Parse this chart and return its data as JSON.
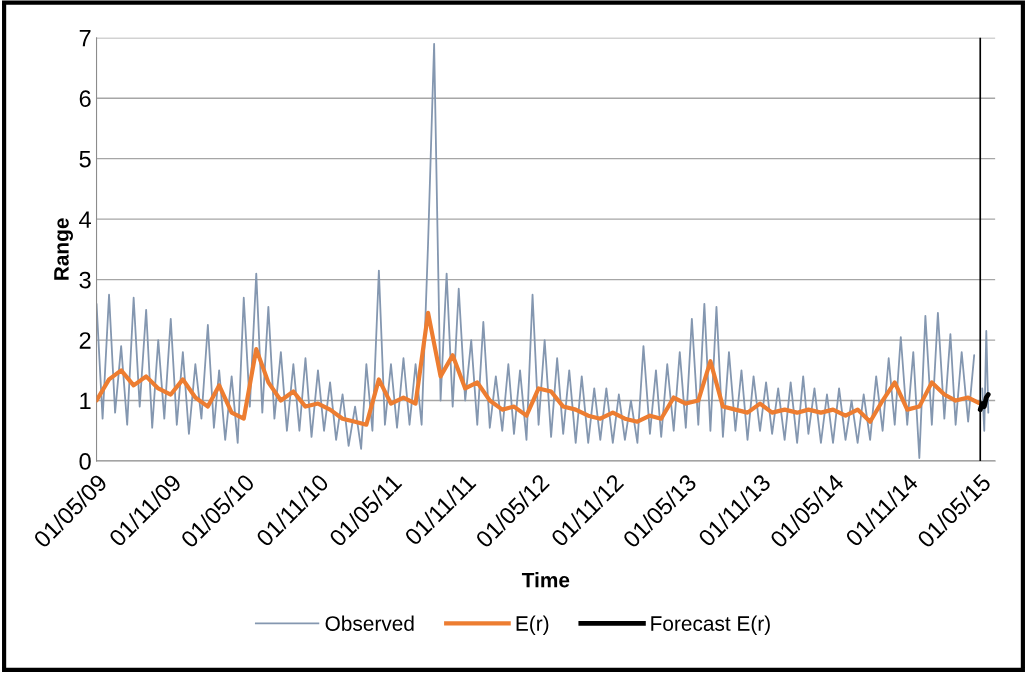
{
  "chart_data": {
    "type": "line",
    "xlabel": "Time",
    "ylabel": "Range",
    "ylim": [
      0,
      7
    ],
    "yticks": [
      0,
      1,
      2,
      3,
      4,
      5,
      6,
      7
    ],
    "xlim": [
      "2009-05-01",
      "2015-06-07"
    ],
    "xticks": [
      {
        "value": "2009-05-01",
        "label": "01/05/09"
      },
      {
        "value": "2009-11-01",
        "label": "01/11/09"
      },
      {
        "value": "2010-05-01",
        "label": "01/05/10"
      },
      {
        "value": "2010-11-01",
        "label": "01/11/10"
      },
      {
        "value": "2011-05-01",
        "label": "01/05/11"
      },
      {
        "value": "2011-11-01",
        "label": "01/11/11"
      },
      {
        "value": "2012-05-01",
        "label": "01/05/12"
      },
      {
        "value": "2012-11-01",
        "label": "01/11/12"
      },
      {
        "value": "2013-05-01",
        "label": "01/05/13"
      },
      {
        "value": "2013-11-01",
        "label": "01/11/13"
      },
      {
        "value": "2014-05-01",
        "label": "01/05/14"
      },
      {
        "value": "2014-11-01",
        "label": "01/11/14"
      },
      {
        "value": "2015-05-01",
        "label": "01/05/15"
      }
    ],
    "grid": "y",
    "legend": "bottom",
    "marker": "none",
    "line_style": "solid",
    "ref_lines": [
      {
        "axis": "x",
        "value": "2015-05-01",
        "color": "#000000"
      }
    ],
    "series": [
      {
        "name": "Observed",
        "color": "#8497b0",
        "x": [
          "2009-05-01",
          "2009-05-16",
          "2009-06-01",
          "2009-06-16",
          "2009-07-01",
          "2009-07-16",
          "2009-08-01",
          "2009-08-16",
          "2009-09-01",
          "2009-09-16",
          "2009-10-01",
          "2009-10-16",
          "2009-11-01",
          "2009-11-16",
          "2009-12-01",
          "2009-12-16",
          "2010-01-01",
          "2010-01-16",
          "2010-02-01",
          "2010-02-16",
          "2010-03-01",
          "2010-03-16",
          "2010-04-01",
          "2010-04-16",
          "2010-05-01",
          "2010-05-16",
          "2010-06-01",
          "2010-06-16",
          "2010-07-01",
          "2010-07-16",
          "2010-08-01",
          "2010-08-16",
          "2010-09-01",
          "2010-09-16",
          "2010-10-01",
          "2010-10-16",
          "2010-11-01",
          "2010-11-16",
          "2010-12-01",
          "2010-12-16",
          "2011-01-01",
          "2011-01-16",
          "2011-02-01",
          "2011-02-16",
          "2011-03-01",
          "2011-03-16",
          "2011-04-01",
          "2011-04-16",
          "2011-05-01",
          "2011-05-16",
          "2011-06-01",
          "2011-06-16",
          "2011-07-01",
          "2011-07-16",
          "2011-08-01",
          "2011-08-16",
          "2011-09-01",
          "2011-09-16",
          "2011-10-01",
          "2011-10-16",
          "2011-11-01",
          "2011-11-16",
          "2011-12-01",
          "2011-12-16",
          "2012-01-01",
          "2012-01-16",
          "2012-02-01",
          "2012-02-16",
          "2012-03-01",
          "2012-03-16",
          "2012-04-01",
          "2012-04-16",
          "2012-05-01",
          "2012-05-16",
          "2012-06-01",
          "2012-06-16",
          "2012-07-01",
          "2012-07-16",
          "2012-08-01",
          "2012-08-16",
          "2012-09-01",
          "2012-09-16",
          "2012-10-01",
          "2012-10-16",
          "2012-11-01",
          "2012-11-16",
          "2012-12-01",
          "2012-12-16",
          "2013-01-01",
          "2013-01-16",
          "2013-02-01",
          "2013-02-16",
          "2013-03-01",
          "2013-03-16",
          "2013-04-01",
          "2013-04-16",
          "2013-05-01",
          "2013-05-16",
          "2013-06-01",
          "2013-06-16",
          "2013-07-01",
          "2013-07-16",
          "2013-08-01",
          "2013-08-16",
          "2013-09-01",
          "2013-09-16",
          "2013-10-01",
          "2013-10-16",
          "2013-11-01",
          "2013-11-16",
          "2013-12-01",
          "2013-12-16",
          "2014-01-01",
          "2014-01-16",
          "2014-02-01",
          "2014-02-16",
          "2014-03-01",
          "2014-03-16",
          "2014-04-01",
          "2014-04-16",
          "2014-05-01",
          "2014-05-16",
          "2014-06-01",
          "2014-06-16",
          "2014-07-01",
          "2014-07-16",
          "2014-08-01",
          "2014-08-16",
          "2014-09-01",
          "2014-09-16",
          "2014-10-01",
          "2014-10-16",
          "2014-11-01",
          "2014-11-16",
          "2014-12-01",
          "2014-12-16",
          "2015-01-01",
          "2015-01-16",
          "2015-02-01",
          "2015-02-16",
          "2015-03-01",
          "2015-03-16",
          "2015-04-01",
          "2015-04-16",
          "2015-05-01",
          "2015-05-06",
          "2015-05-11",
          "2015-05-16",
          "2015-05-21"
        ],
        "values": [
          2.6,
          0.7,
          2.75,
          0.8,
          1.9,
          0.6,
          2.7,
          0.9,
          2.5,
          0.55,
          2.0,
          0.7,
          2.35,
          0.6,
          1.8,
          0.45,
          1.6,
          0.7,
          2.25,
          0.55,
          1.5,
          0.35,
          1.4,
          0.3,
          2.7,
          0.9,
          3.1,
          0.8,
          2.55,
          0.7,
          1.8,
          0.5,
          1.6,
          0.5,
          1.7,
          0.4,
          1.5,
          0.5,
          1.3,
          0.35,
          1.1,
          0.25,
          0.9,
          0.2,
          1.6,
          0.5,
          3.15,
          0.6,
          1.6,
          0.55,
          1.7,
          0.6,
          1.6,
          0.6,
          3.6,
          6.9,
          1.0,
          3.1,
          0.9,
          2.85,
          1.0,
          2.0,
          0.6,
          2.3,
          0.55,
          1.4,
          0.5,
          1.6,
          0.45,
          1.5,
          0.35,
          2.75,
          0.6,
          2.0,
          0.4,
          1.7,
          0.45,
          1.5,
          0.3,
          1.4,
          0.3,
          1.2,
          0.35,
          1.2,
          0.3,
          1.1,
          0.35,
          1.0,
          0.3,
          1.9,
          0.45,
          1.5,
          0.4,
          1.6,
          0.5,
          1.8,
          0.55,
          2.35,
          0.6,
          2.6,
          0.5,
          2.55,
          0.4,
          1.8,
          0.5,
          1.5,
          0.35,
          1.4,
          0.5,
          1.3,
          0.45,
          1.2,
          0.35,
          1.3,
          0.3,
          1.4,
          0.45,
          1.2,
          0.3,
          1.1,
          0.3,
          1.2,
          0.35,
          1.0,
          0.3,
          1.1,
          0.35,
          1.4,
          0.5,
          1.7,
          0.6,
          2.05,
          0.6,
          1.8,
          0.05,
          2.4,
          0.6,
          2.45,
          0.7,
          2.1,
          0.6,
          1.8,
          0.65,
          1.75,
          null,
          1.2,
          0.5,
          2.15,
          0.8
        ]
      },
      {
        "name": "E(r)",
        "color": "#ed7d31",
        "x": [
          "2009-05-01",
          "2009-06-01",
          "2009-07-01",
          "2009-08-01",
          "2009-09-01",
          "2009-10-01",
          "2009-11-01",
          "2009-12-01",
          "2010-01-01",
          "2010-02-01",
          "2010-03-01",
          "2010-04-01",
          "2010-05-01",
          "2010-06-01",
          "2010-07-01",
          "2010-08-01",
          "2010-09-01",
          "2010-10-01",
          "2010-11-01",
          "2010-12-01",
          "2011-01-01",
          "2011-02-01",
          "2011-03-01",
          "2011-04-01",
          "2011-05-01",
          "2011-06-01",
          "2011-07-01",
          "2011-08-01",
          "2011-09-01",
          "2011-10-01",
          "2011-11-01",
          "2011-12-01",
          "2012-01-01",
          "2012-02-01",
          "2012-03-01",
          "2012-04-01",
          "2012-05-01",
          "2012-06-01",
          "2012-07-01",
          "2012-08-01",
          "2012-09-01",
          "2012-10-01",
          "2012-11-01",
          "2012-12-01",
          "2013-01-01",
          "2013-02-01",
          "2013-03-01",
          "2013-04-01",
          "2013-05-01",
          "2013-06-01",
          "2013-07-01",
          "2013-08-01",
          "2013-09-01",
          "2013-10-01",
          "2013-11-01",
          "2013-12-01",
          "2014-01-01",
          "2014-02-01",
          "2014-03-01",
          "2014-04-01",
          "2014-05-01",
          "2014-06-01",
          "2014-07-01",
          "2014-08-01",
          "2014-09-01",
          "2014-10-01",
          "2014-11-01",
          "2014-12-01",
          "2015-01-01",
          "2015-02-01",
          "2015-03-01",
          "2015-04-01",
          "2015-05-01"
        ],
        "values": [
          1.0,
          1.35,
          1.5,
          1.25,
          1.4,
          1.2,
          1.1,
          1.35,
          1.05,
          0.9,
          1.25,
          0.8,
          0.7,
          1.85,
          1.3,
          1.0,
          1.15,
          0.9,
          0.95,
          0.85,
          0.7,
          0.65,
          0.6,
          1.35,
          0.95,
          1.05,
          0.95,
          2.45,
          1.4,
          1.75,
          1.2,
          1.3,
          1.0,
          0.85,
          0.9,
          0.75,
          1.2,
          1.15,
          0.9,
          0.85,
          0.75,
          0.7,
          0.8,
          0.7,
          0.65,
          0.75,
          0.7,
          1.05,
          0.95,
          1.0,
          1.65,
          0.9,
          0.85,
          0.8,
          0.95,
          0.8,
          0.85,
          0.8,
          0.85,
          0.8,
          0.85,
          0.75,
          0.85,
          0.65,
          1.0,
          1.3,
          0.85,
          0.9,
          1.3,
          1.1,
          1.0,
          1.05,
          0.95
        ]
      },
      {
        "name": "Forecast E(r)",
        "color": "#000000",
        "x": [
          "2015-05-01",
          "2015-05-06",
          "2015-05-11",
          "2015-05-16",
          "2015-05-21"
        ],
        "values": [
          0.85,
          0.95,
          0.9,
          1.05,
          1.1
        ]
      }
    ]
  }
}
